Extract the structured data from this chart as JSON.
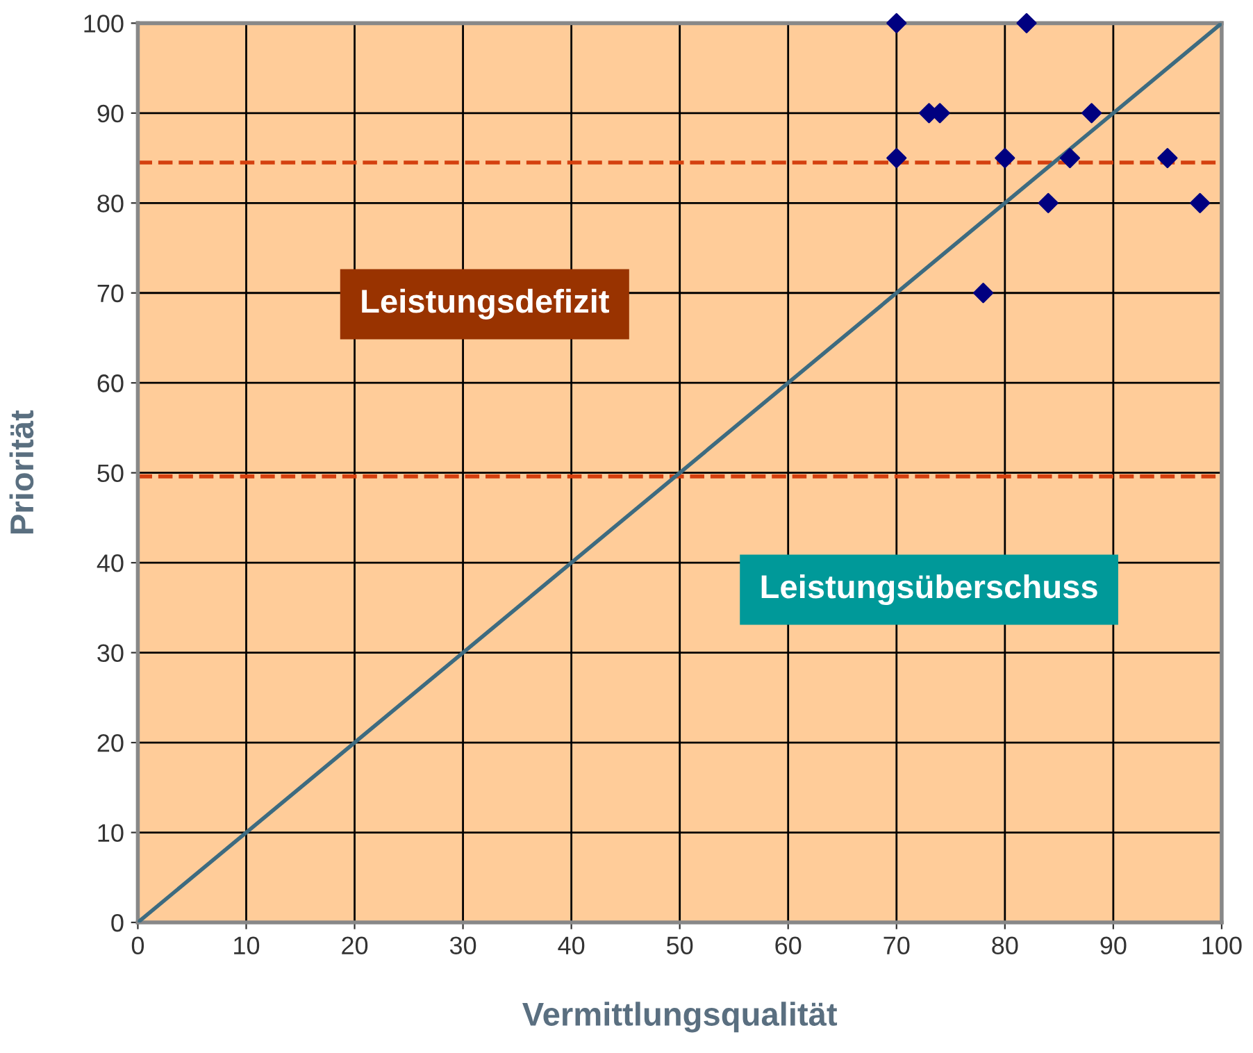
{
  "chart_data": {
    "type": "scatter",
    "xlabel": "Vermittlungsqualität",
    "ylabel": "Priorität",
    "xlim": [
      0,
      100
    ],
    "ylim": [
      0,
      100
    ],
    "xticks": [
      0,
      10,
      20,
      30,
      40,
      50,
      60,
      70,
      80,
      90,
      100
    ],
    "yticks": [
      0,
      10,
      20,
      30,
      40,
      50,
      60,
      70,
      80,
      90,
      100
    ],
    "grid": true,
    "marker": "diamond",
    "legend": false,
    "series": [
      {
        "color": "#000080",
        "x": [
          70,
          82,
          73,
          74,
          88,
          70,
          80,
          86,
          95,
          84,
          98,
          78
        ],
        "values": [
          100,
          100,
          90,
          90,
          90,
          85,
          85,
          85,
          85,
          80,
          80,
          70
        ]
      },
      {
        "type": "line",
        "color": "#3d6b80",
        "marker": "none",
        "line_style": "solid",
        "x": [
          0,
          100
        ],
        "values": [
          0,
          100
        ]
      }
    ],
    "ref_lines": [
      {
        "axis": "y",
        "value": 84.5,
        "color": "#d4400f",
        "line_style": "dashed"
      },
      {
        "axis": "y",
        "value": 49.6,
        "color": "#d4400f",
        "line_style": "dashed"
      }
    ],
    "annotations": [
      "Leistungsdefizit",
      "Leistungsüberschuss"
    ]
  }
}
